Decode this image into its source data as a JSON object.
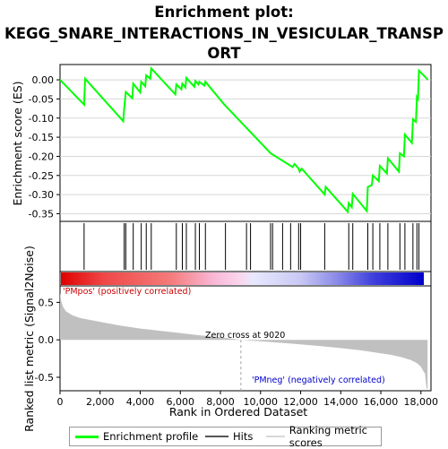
{
  "title_line1": "Enrichment plot:",
  "title_line2": "KEGG_SNARE_INTERACTIONS_IN_VESICULAR_TRANSP",
  "title_line3": "ORT",
  "colors": {
    "es_line": "#00ff00",
    "hits": "#000000",
    "ranking_fill": "#c0c0c0",
    "pos_label": "#cc0000",
    "neg_label": "#0000cc",
    "zero_line": "#a0a0a0"
  },
  "chart_data": [
    {
      "type": "line",
      "name": "enrichment-profile",
      "ylabel": "Enrichment score (ES)",
      "xlim": [
        0,
        18500
      ],
      "ylim": [
        -0.37,
        0.04
      ],
      "yticks": [
        "0.00",
        "-0.05",
        "-0.10",
        "-0.15",
        "-0.20",
        "-0.25",
        "-0.30",
        "-0.35"
      ],
      "ytick_values": [
        0.0,
        -0.05,
        -0.1,
        -0.15,
        -0.2,
        -0.25,
        -0.3,
        -0.35
      ],
      "points": [
        [
          0,
          0.0
        ],
        [
          1200,
          -0.065
        ],
        [
          1250,
          0.003
        ],
        [
          3150,
          -0.108
        ],
        [
          3200,
          -0.075
        ],
        [
          3280,
          -0.032
        ],
        [
          3600,
          -0.048
        ],
        [
          3650,
          -0.01
        ],
        [
          4000,
          -0.033
        ],
        [
          4050,
          -0.005
        ],
        [
          4250,
          -0.017
        ],
        [
          4300,
          0.012
        ],
        [
          4500,
          0.003
        ],
        [
          4550,
          0.03
        ],
        [
          5750,
          -0.038
        ],
        [
          5800,
          -0.012
        ],
        [
          6050,
          -0.025
        ],
        [
          6100,
          -0.01
        ],
        [
          6250,
          -0.02
        ],
        [
          6300,
          0.005
        ],
        [
          6700,
          -0.018
        ],
        [
          6750,
          -0.003
        ],
        [
          6900,
          -0.012
        ],
        [
          6950,
          -0.005
        ],
        [
          7200,
          -0.015
        ],
        [
          7250,
          -0.005
        ],
        [
          8200,
          -0.065
        ],
        [
          10500,
          -0.192
        ],
        [
          11600,
          -0.228
        ],
        [
          11700,
          -0.22
        ],
        [
          11900,
          -0.232
        ],
        [
          11950,
          -0.24
        ],
        [
          12050,
          -0.232
        ],
        [
          13200,
          -0.3
        ],
        [
          13250,
          -0.28
        ],
        [
          14350,
          -0.345
        ],
        [
          14400,
          -0.322
        ],
        [
          14550,
          -0.333
        ],
        [
          14600,
          -0.298
        ],
        [
          15300,
          -0.343
        ],
        [
          15350,
          -0.28
        ],
        [
          15550,
          -0.275
        ],
        [
          15600,
          -0.25
        ],
        [
          15900,
          -0.265
        ],
        [
          15950,
          -0.225
        ],
        [
          16300,
          -0.245
        ],
        [
          16350,
          -0.205
        ],
        [
          16900,
          -0.24
        ],
        [
          16950,
          -0.192
        ],
        [
          17150,
          -0.2
        ],
        [
          17200,
          -0.143
        ],
        [
          17550,
          -0.165
        ],
        [
          17600,
          -0.103
        ],
        [
          17750,
          -0.11
        ],
        [
          17800,
          -0.045
        ],
        [
          17850,
          -0.05
        ],
        [
          17900,
          0.024
        ],
        [
          18350,
          0.0
        ]
      ]
    },
    {
      "type": "hits",
      "name": "hits",
      "positions": [
        1200,
        3200,
        3280,
        3650,
        4050,
        4300,
        4550,
        5800,
        6100,
        6300,
        6750,
        6950,
        7250,
        8250,
        9300,
        9500,
        10500,
        10600,
        11100,
        11500,
        11900,
        12000,
        13200,
        14400,
        14600,
        15350,
        15600,
        15950,
        16350,
        16950,
        17200,
        17600,
        17800,
        17900
      ]
    },
    {
      "type": "area",
      "name": "ranked-list-metric",
      "ylabel": "Ranked list metric (Signal2Noise)",
      "xlabel": "Rank in Ordered Dataset",
      "xlim": [
        0,
        18500
      ],
      "ylim": [
        -0.68,
        0.72
      ],
      "yticks": [
        "0.5",
        "0.0",
        "-0.5"
      ],
      "ytick_values": [
        0.5,
        0.0,
        -0.5
      ],
      "xticks": [
        "0",
        "2,000",
        "4,000",
        "6,000",
        "8,000",
        "10,000",
        "12,000",
        "14,000",
        "16,000",
        "18,000"
      ],
      "xtick_values": [
        0,
        2000,
        4000,
        6000,
        8000,
        10000,
        12000,
        14000,
        16000,
        18000
      ],
      "x": [
        0,
        60,
        150,
        300,
        600,
        1000,
        2000,
        3000,
        4000,
        5000,
        6000,
        7000,
        8000,
        9020,
        10000,
        11000,
        12000,
        13000,
        14000,
        15000,
        16000,
        16500,
        17000,
        17500,
        17800,
        18000,
        18100,
        18200,
        18280,
        18330
      ],
      "values": [
        0.63,
        0.52,
        0.44,
        0.38,
        0.33,
        0.29,
        0.24,
        0.19,
        0.15,
        0.12,
        0.09,
        0.06,
        0.035,
        0.0,
        -0.02,
        -0.04,
        -0.06,
        -0.085,
        -0.11,
        -0.14,
        -0.18,
        -0.2,
        -0.23,
        -0.27,
        -0.31,
        -0.36,
        -0.41,
        -0.45,
        -0.65,
        -0.65
      ],
      "zero_cross_label": "Zero cross at 9020",
      "zero_cross": 9020,
      "pos_label": "'PMpos' (positively correlated)",
      "neg_label": "'PMneg' (negatively correlated)"
    }
  ],
  "legend": {
    "items": [
      {
        "label": "Enrichment profile",
        "color": "#00ff00"
      },
      {
        "label": "Hits",
        "color": "#000000"
      },
      {
        "label": "Ranking metric scores",
        "color": "#c0c0c0"
      }
    ]
  }
}
